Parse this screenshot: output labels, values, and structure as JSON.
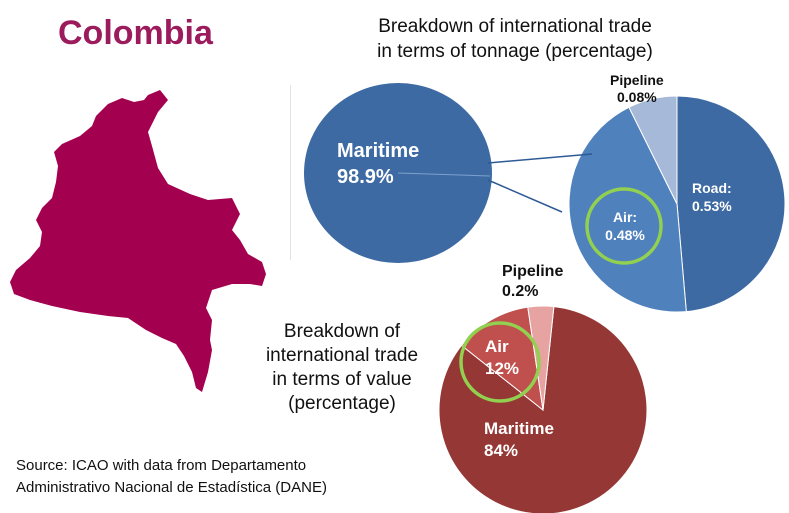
{
  "country": "Colombia",
  "source_line1": "Source: ICAO with data from Departamento",
  "source_line2": "Administrativo  Nacional de Estadística (DANE)",
  "colors": {
    "map": "#a3004f",
    "maritime_tonnage": "#3d6aa3",
    "road": "#3d6aa3",
    "air_tonnage": "#4f81bd",
    "pipeline_tonnage": "#a7b9d8",
    "maritime_value": "#953735",
    "air_value": "#c0504d",
    "pipeline_value": "#e6a3a1",
    "highlight": "#92d050"
  },
  "chart_data": [
    {
      "type": "pie",
      "title_line1": "Breakdown of international  trade",
      "title_line2": "in terms of tonnage (percentage)",
      "slices": [
        {
          "name": "Maritime",
          "value": 98.9,
          "label": "98.9%"
        },
        {
          "name": "Road:",
          "value": 0.53,
          "label": "0.53%"
        },
        {
          "name": "Air:",
          "value": 0.48,
          "label": "0.48%"
        },
        {
          "name": "Pipeline",
          "value": 0.08,
          "label": "0.08%"
        }
      ]
    },
    {
      "type": "pie",
      "title_line1": "Breakdown  of",
      "title_line2": "international  trade",
      "title_line3": "in terms of value",
      "title_line4": "(percentage)",
      "slices": [
        {
          "name": "Maritime",
          "value": 84,
          "label": "84%"
        },
        {
          "name": "Air",
          "value": 12,
          "label": "12%"
        },
        {
          "name": "Pipeline",
          "value": 0.2,
          "label": "0.2%"
        }
      ]
    }
  ]
}
